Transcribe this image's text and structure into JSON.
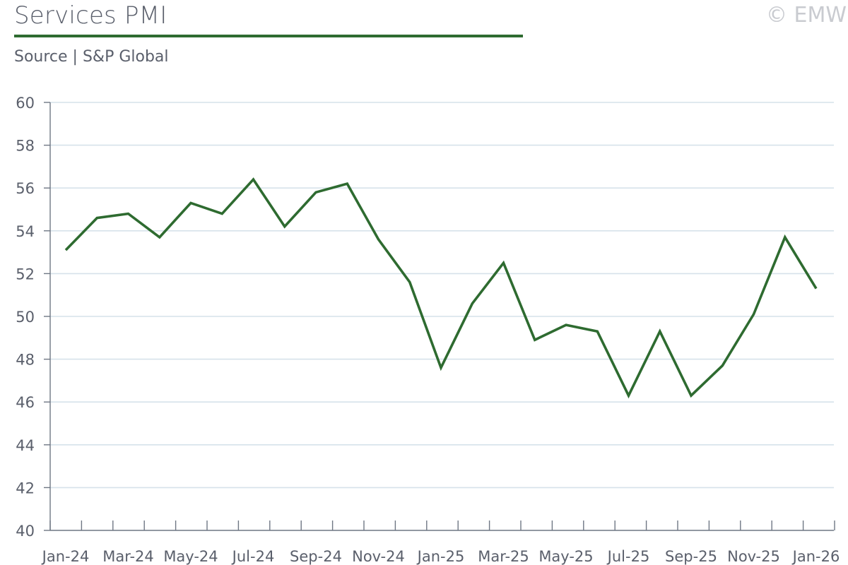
{
  "header": {
    "title": "Services PMI",
    "subtitle": "Source | S&P Global",
    "copyright": "© EMW"
  },
  "colors": {
    "line": "#2e6b30",
    "grid": "#d6e2ea",
    "axis": "#6f7784",
    "text": "#5a5f6b",
    "title_rule": "#2e6b30"
  },
  "chart_data": {
    "type": "line",
    "title": "Services PMI",
    "subtitle": "Source | S&P Global",
    "xlabel": "",
    "ylabel": "",
    "ylim": [
      40,
      60
    ],
    "yticks": [
      40,
      42,
      44,
      46,
      48,
      50,
      52,
      54,
      56,
      58,
      60
    ],
    "grid": true,
    "legend": "none",
    "x": [
      "Jan-24",
      "Feb-24",
      "Mar-24",
      "Apr-24",
      "May-24",
      "Jun-24",
      "Jul-24",
      "Aug-24",
      "Sep-24",
      "Oct-24",
      "Nov-24",
      "Dec-24",
      "Jan-25",
      "Feb-25",
      "Mar-25",
      "Apr-25",
      "May-25",
      "Jun-25",
      "Jul-25",
      "Aug-25",
      "Sep-25",
      "Oct-25",
      "Nov-25",
      "Dec-25",
      "Jan-26"
    ],
    "xtick_labels": [
      "Jan-24",
      "Mar-24",
      "May-24",
      "Jul-24",
      "Sep-24",
      "Nov-24",
      "Jan-25",
      "Mar-25",
      "May-25",
      "Jul-25",
      "Sep-25",
      "Nov-25",
      "Jan-26"
    ],
    "series": [
      {
        "values": [
          53.1,
          54.6,
          54.8,
          53.7,
          55.3,
          54.8,
          56.4,
          54.2,
          55.8,
          56.2,
          53.6,
          51.6,
          47.6,
          50.6,
          52.5,
          48.9,
          49.6,
          49.3,
          46.3,
          49.3,
          46.3,
          47.7,
          50.1,
          53.7,
          51.3
        ]
      }
    ]
  }
}
